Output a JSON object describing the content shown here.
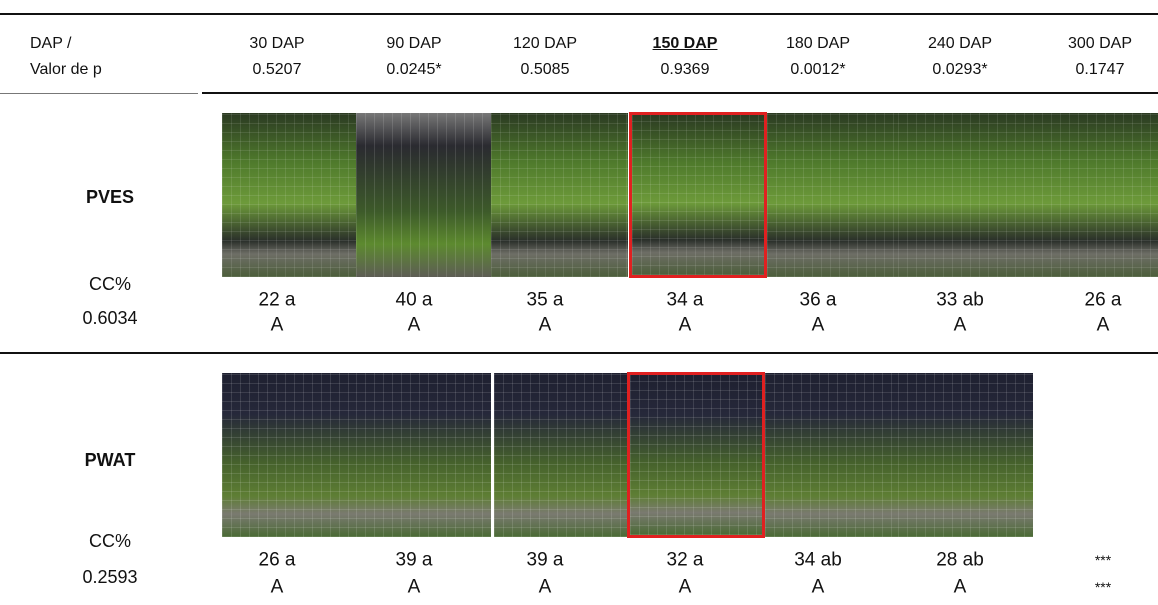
{
  "header": {
    "label_lines": [
      "DAP /",
      "Valor de p"
    ],
    "columns": [
      {
        "label": "30 DAP",
        "p_value": "0.5207"
      },
      {
        "label": "90 DAP",
        "p_value": "0.0245*"
      },
      {
        "label": "120 DAP",
        "p_value": "0.5085"
      },
      {
        "label": "150 DAP",
        "p_value": "0.9369"
      },
      {
        "label": "180 DAP",
        "p_value": "0.0012*"
      },
      {
        "label": "240 DAP",
        "p_value": "0.0293*"
      },
      {
        "label": "300 DAP",
        "p_value": "0.1747"
      }
    ],
    "highlighted_column": 3
  },
  "rows": [
    {
      "name": "PVES",
      "metric": "CC%",
      "metric_p": "0.6034",
      "cells": [
        {
          "mean": "22 a",
          "group": "A"
        },
        {
          "mean": "40 a",
          "group": "A"
        },
        {
          "mean": "35 a",
          "group": "A"
        },
        {
          "mean": "34 a",
          "group": "A"
        },
        {
          "mean": "36 a",
          "group": "A"
        },
        {
          "mean": "33 ab",
          "group": "A"
        },
        {
          "mean": "26 a",
          "group": "A"
        }
      ]
    },
    {
      "name": "PWAT",
      "metric": "CC%",
      "metric_p": "0.2593",
      "cells": [
        {
          "mean": "26 a",
          "group": "A"
        },
        {
          "mean": "39 a",
          "group": "A"
        },
        {
          "mean": "39 a",
          "group": "A"
        },
        {
          "mean": "32 a",
          "group": "A"
        },
        {
          "mean": "34 ab",
          "group": "A"
        },
        {
          "mean": "28 ab",
          "group": "A"
        },
        {
          "mean": "***",
          "group": "***"
        }
      ]
    }
  ]
}
